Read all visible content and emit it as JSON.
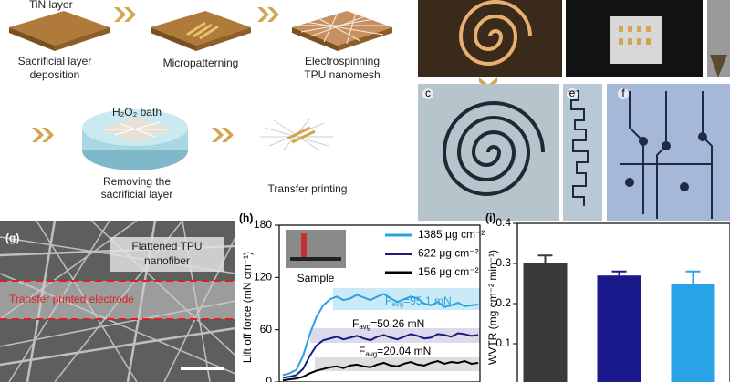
{
  "process_steps": [
    {
      "label_lines": [
        "TiN layer"
      ]
    },
    {
      "label_lines": [
        "Sacrificial layer",
        "deposition"
      ]
    },
    {
      "label_lines": [
        "Micropatterning"
      ]
    },
    {
      "label_lines": [
        "Electrospinning",
        "TPU nanomesh"
      ]
    },
    {
      "label_lines": [
        "H₂O₂ bath"
      ]
    },
    {
      "label_lines": [
        "Removing the",
        "sacrificial layer"
      ]
    },
    {
      "label_lines": [
        "Transfer printing"
      ]
    }
  ],
  "photo_panels": [
    "c",
    "e",
    "f"
  ],
  "sem_panel": {
    "label": "(g)",
    "annotations": [
      "Flattened TPU",
      "nanofiber",
      "Transfer printed electrode"
    ]
  },
  "chart_data": [
    {
      "type": "line",
      "panel": "(h)",
      "y_label": "Lift off force (mN cm⁻¹)",
      "ylim": [
        0,
        180
      ],
      "yticks": [
        0,
        60,
        120,
        180
      ],
      "inset_label": "Sample",
      "annotations": [
        {
          "symbol": "F",
          "subscript": "avg",
          "text": "=95.1 mN",
          "color": "#29a3e0"
        },
        {
          "symbol": "F",
          "subscript": "avg",
          "text": "=50.26 mN",
          "color": "#000000"
        },
        {
          "symbol": "F",
          "subscript": "avg",
          "text": "=20.04 mN",
          "color": "#000000"
        }
      ],
      "series": [
        {
          "name": "156 μg cm⁻²",
          "color": "#000000",
          "values": [
            2,
            3,
            4,
            6,
            10,
            13,
            15,
            17,
            18,
            16,
            19,
            20,
            18,
            17,
            20,
            22,
            19,
            18,
            21,
            23,
            20,
            19,
            22,
            24,
            21,
            23,
            22,
            24,
            21,
            22
          ]
        },
        {
          "name": "622 μg cm⁻²",
          "color": "#1a1a80",
          "values": [
            5,
            6,
            8,
            15,
            30,
            42,
            48,
            50,
            52,
            49,
            51,
            53,
            50,
            48,
            52,
            54,
            51,
            49,
            52,
            55,
            53,
            50,
            51,
            55,
            54,
            52,
            56,
            55,
            53,
            54
          ]
        },
        {
          "name": "1385 μg cm⁻²",
          "color": "#29a3e0",
          "values": [
            8,
            10,
            14,
            30,
            55,
            75,
            88,
            95,
            98,
            94,
            96,
            100,
            97,
            94,
            98,
            101,
            96,
            92,
            95,
            98,
            96,
            90,
            88,
            92,
            86,
            88,
            91,
            87,
            88,
            89
          ]
        }
      ]
    },
    {
      "type": "bar",
      "panel": "(i)",
      "y_label": "WVTR (mg cm⁻² min⁻¹)",
      "ylim": [
        0,
        0.4
      ],
      "yticks": [
        0.1,
        0.2,
        0.3,
        0.4
      ],
      "values": [
        0.3,
        0.27,
        0.25
      ],
      "errors": [
        0.02,
        0.01,
        0.03
      ],
      "colors": [
        "#3a3a3a",
        "#1a1a8c",
        "#29a3e8"
      ]
    }
  ]
}
